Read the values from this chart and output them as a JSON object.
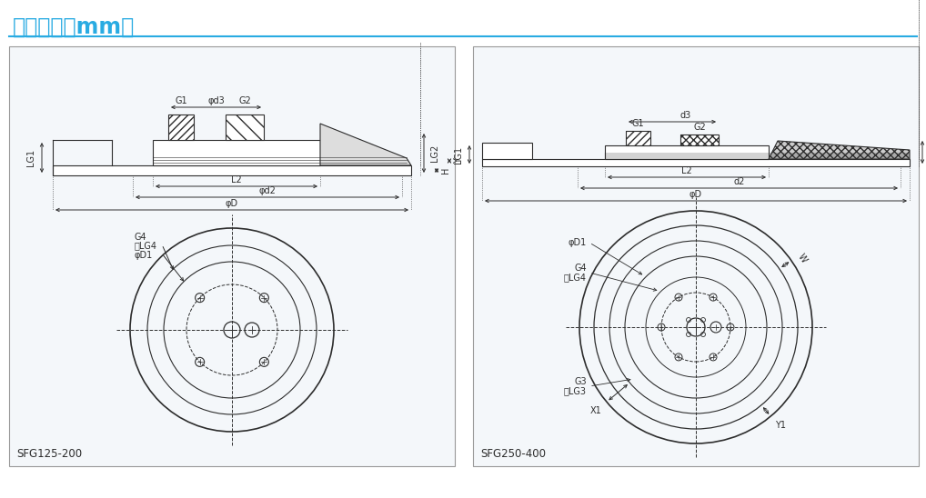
{
  "title": "尺寸规格（mm）",
  "title_color": "#29ABE2",
  "bg_color": "#ffffff",
  "line_color": "#2d2d2d",
  "panel_bg": "#f4f7fa",
  "panel_border": "#aaaaaa",
  "label1": "SFG125-200",
  "label2": "SFG250-400"
}
